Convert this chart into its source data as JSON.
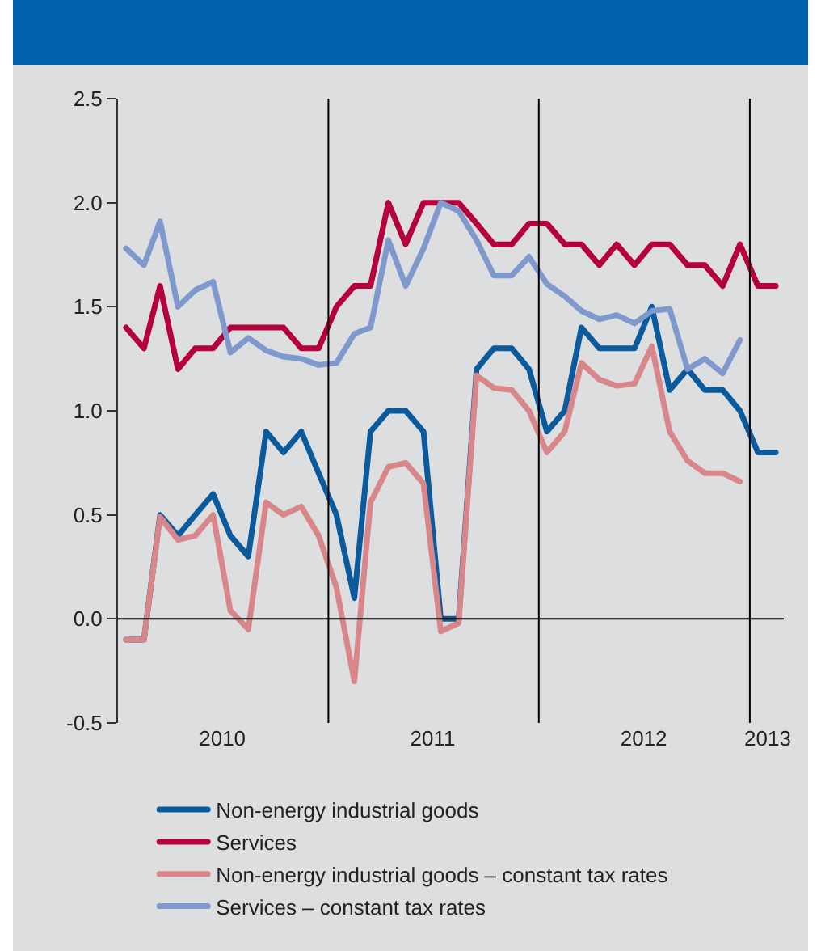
{
  "chart_data": {
    "type": "line",
    "x": [
      "2010-01-15",
      "2010-02-15",
      "2010-03-15",
      "2010-04-15",
      "2010-05-15",
      "2010-06-15",
      "2010-07-15",
      "2010-08-15",
      "2010-09-15",
      "2010-10-15",
      "2010-11-15",
      "2010-12-15",
      "2011-01-15",
      "2011-02-15",
      "2011-03-15",
      "2011-04-15",
      "2011-05-15",
      "2011-06-15",
      "2011-07-15",
      "2011-08-15",
      "2011-09-15",
      "2011-10-15",
      "2011-11-15",
      "2011-12-15",
      "2012-01-15",
      "2012-02-15",
      "2012-03-15",
      "2012-04-15",
      "2012-05-15",
      "2012-06-15",
      "2012-07-15",
      "2012-08-15",
      "2012-09-15",
      "2012-10-15",
      "2012-11-15",
      "2012-12-15",
      "2013-01-15",
      "2013-02-15"
    ],
    "series": [
      {
        "name": "Non-energy industrial goods",
        "color": "#0a5a9c",
        "values": [
          -0.1,
          -0.1,
          0.5,
          0.4,
          0.5,
          0.6,
          0.4,
          0.3,
          0.9,
          0.8,
          0.9,
          0.7,
          0.5,
          0.1,
          0.9,
          1.0,
          1.0,
          0.9,
          0.0,
          0.0,
          1.2,
          1.3,
          1.3,
          1.2,
          0.9,
          1.0,
          1.4,
          1.3,
          1.3,
          1.3,
          1.5,
          1.1,
          1.2,
          1.1,
          1.1,
          1.0,
          0.8,
          0.8
        ]
      },
      {
        "name": "Services",
        "color": "#b5003c",
        "values": [
          1.4,
          1.3,
          1.6,
          1.2,
          1.3,
          1.3,
          1.4,
          1.4,
          1.4,
          1.4,
          1.3,
          1.3,
          1.5,
          1.6,
          1.6,
          2.0,
          1.8,
          2.0,
          2.0,
          2.0,
          1.9,
          1.8,
          1.8,
          1.9,
          1.9,
          1.8,
          1.8,
          1.7,
          1.8,
          1.7,
          1.8,
          1.8,
          1.7,
          1.7,
          1.6,
          1.8,
          1.6,
          1.6
        ]
      },
      {
        "name": "Non-energy industrial goods – constant tax rates",
        "color": "#d9868a",
        "values": [
          -0.1,
          -0.1,
          0.49,
          0.38,
          0.4,
          0.5,
          0.04,
          -0.05,
          0.56,
          0.5,
          0.54,
          0.4,
          0.15,
          -0.3,
          0.56,
          0.73,
          0.75,
          0.65,
          -0.06,
          -0.02,
          1.17,
          1.11,
          1.1,
          1.0,
          0.8,
          0.9,
          1.23,
          1.15,
          1.12,
          1.13,
          1.31,
          0.9,
          0.76,
          0.7,
          0.7,
          0.66,
          null,
          null
        ]
      },
      {
        "name": "Services – constant tax rates",
        "color": "#8099cc",
        "values": [
          1.78,
          1.7,
          1.91,
          1.5,
          1.58,
          1.62,
          1.28,
          1.35,
          1.29,
          1.26,
          1.25,
          1.22,
          1.23,
          1.37,
          1.4,
          1.82,
          1.6,
          1.78,
          2.0,
          1.96,
          1.82,
          1.65,
          1.65,
          1.74,
          1.61,
          1.55,
          1.48,
          1.44,
          1.46,
          1.42,
          1.48,
          1.49,
          1.2,
          1.25,
          1.18,
          1.34,
          null,
          null
        ]
      }
    ],
    "xlim": [
      "2010-01-01",
      "2013-03-01"
    ],
    "xticks": [
      {
        "value": "2010-07-01",
        "label": "2010"
      },
      {
        "value": "2011-07-01",
        "label": "2011"
      },
      {
        "value": "2012-07-01",
        "label": "2012"
      },
      {
        "value": "2013-02-01",
        "label": "2013"
      }
    ],
    "ylim": [
      -0.5,
      2.5
    ],
    "yticks": [
      {
        "value": -0.5,
        "label": "-0.5"
      },
      {
        "value": 0,
        "label": "0.0"
      },
      {
        "value": 0.5,
        "label": "0.5"
      },
      {
        "value": 1,
        "label": "1.0"
      },
      {
        "value": 1.5,
        "label": "1.5"
      },
      {
        "value": 2,
        "label": "2.0"
      },
      {
        "value": 2.5,
        "label": "2.5"
      }
    ],
    "ref_lines": [
      {
        "axis": "y",
        "value": 0,
        "color": "#000000"
      },
      {
        "axis": "x",
        "value": "2011-01-01",
        "color": "#000000"
      },
      {
        "axis": "x",
        "value": "2012-01-01",
        "color": "#000000"
      },
      {
        "axis": "x",
        "value": "2013-01-01",
        "color": "#000000"
      }
    ],
    "grid": false,
    "legend": "bottom",
    "marker": "none",
    "line_style": "solid"
  }
}
